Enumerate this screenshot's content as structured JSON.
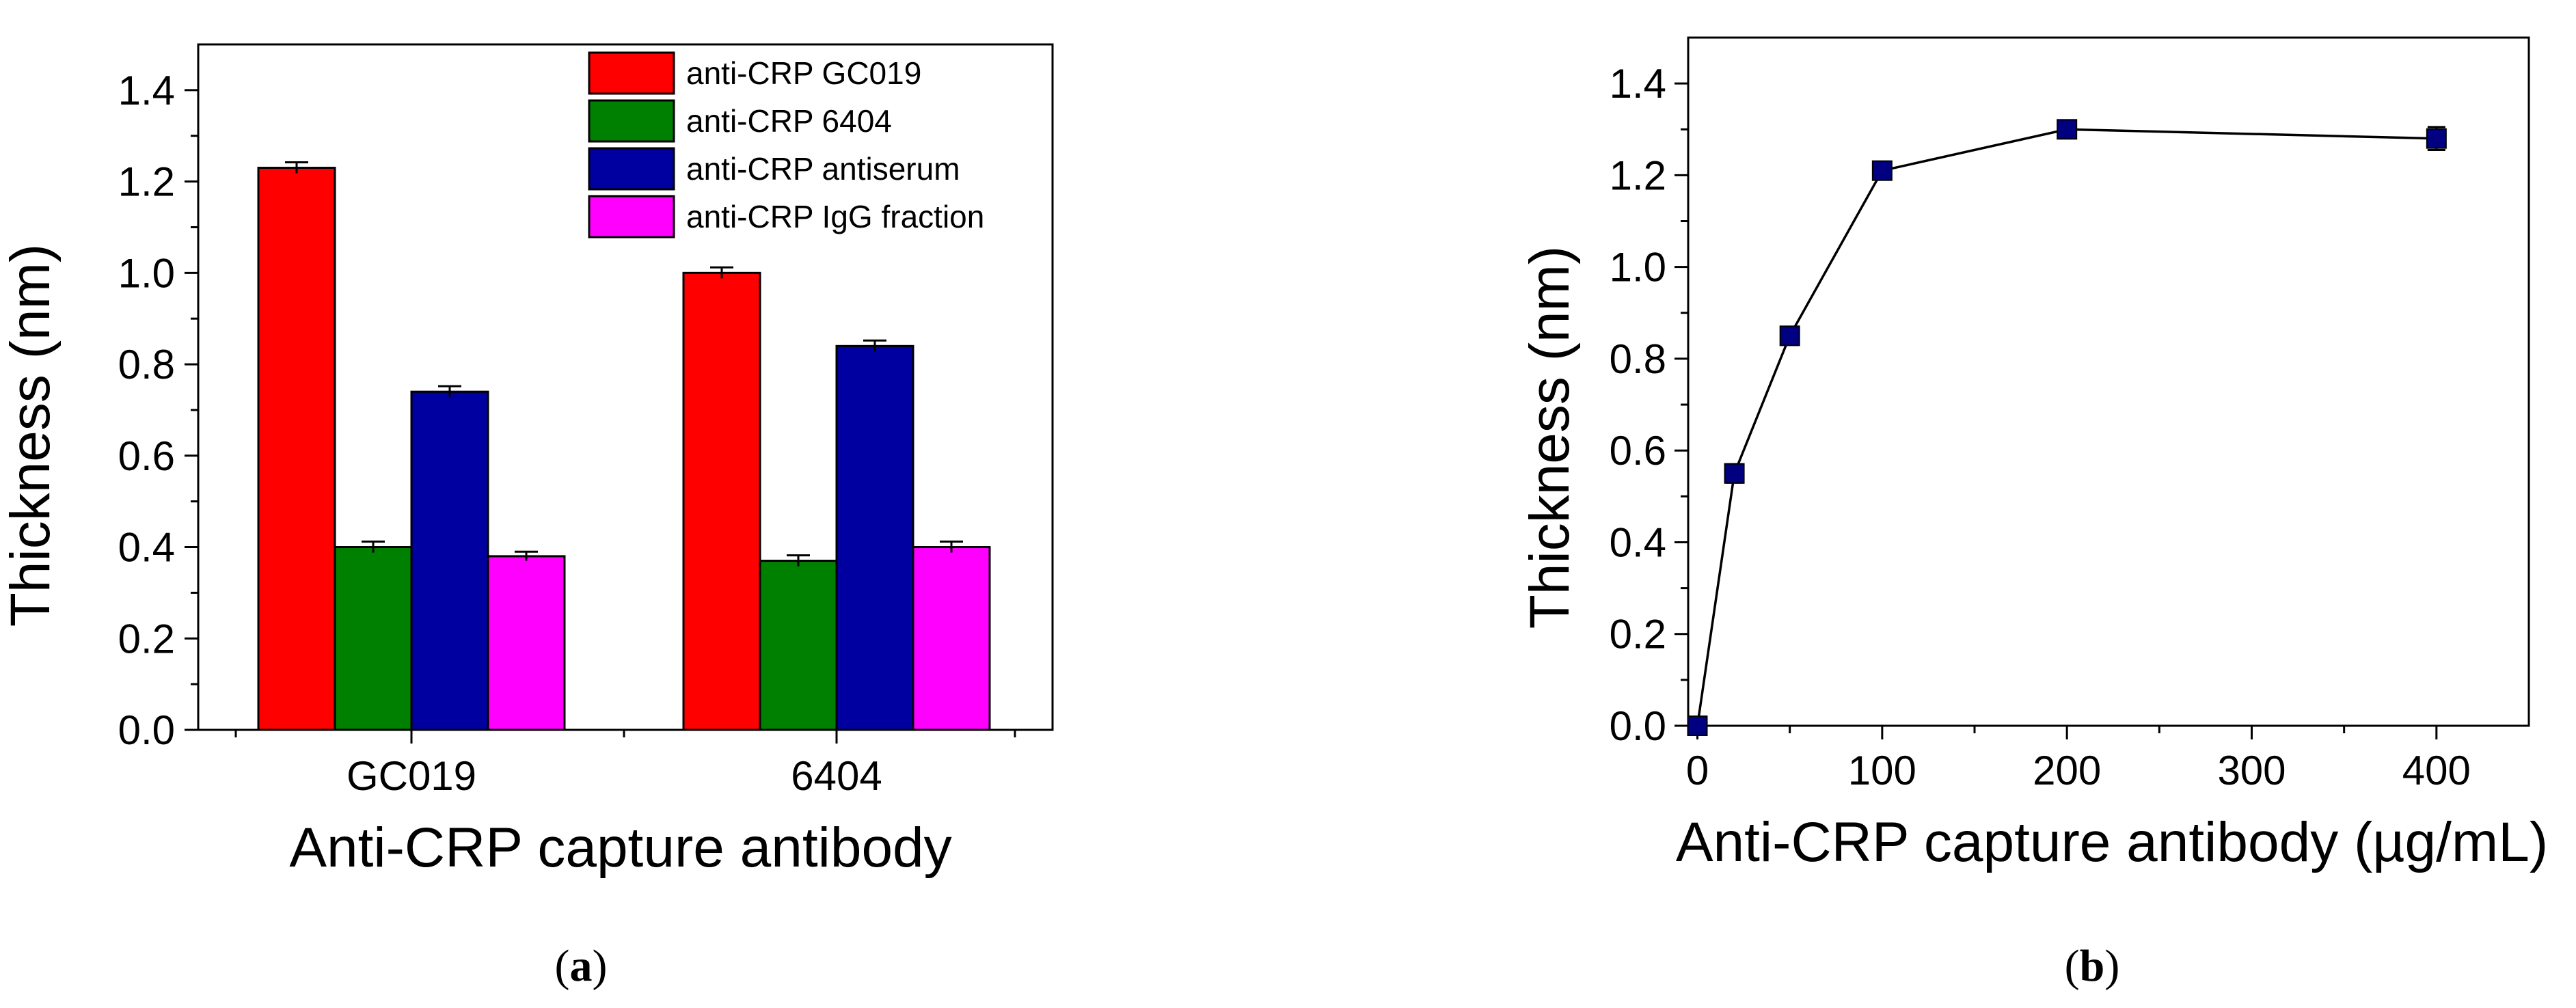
{
  "chart_data": [
    {
      "type": "bar",
      "panel_label": "(a)",
      "panel_letter": "a",
      "xlabel": "Anti-CRP capture antibody",
      "ylabel": "Thickness (nm)",
      "categories": [
        "GC019",
        "6404"
      ],
      "ylim": [
        0,
        1.5
      ],
      "yticks": [
        "0.0",
        "0.2",
        "0.4",
        "0.6",
        "0.8",
        "1.0",
        "1.2",
        "1.4"
      ],
      "legend_position": "top-right",
      "series": [
        {
          "name": "anti-CRP GC019",
          "color": "#ff0000",
          "values": [
            1.23,
            1.0
          ],
          "errors": [
            0.012,
            0.012
          ]
        },
        {
          "name": "anti-CRP 6404",
          "color": "#008000",
          "values": [
            0.4,
            0.37
          ],
          "errors": [
            0.012,
            0.012
          ]
        },
        {
          "name": "anti-CRP antiserum",
          "color": "#0000a0",
          "values": [
            0.74,
            0.84
          ],
          "errors": [
            0.012,
            0.012
          ]
        },
        {
          "name": "anti-CRP IgG fraction",
          "color": "#ff00ff",
          "values": [
            0.38,
            0.4
          ],
          "errors": [
            0.01,
            0.012
          ]
        }
      ]
    },
    {
      "type": "line",
      "panel_label": "(b)",
      "panel_letter": "b",
      "xlabel": "Anti-CRP capture antibody (µg/mL)",
      "ylabel": "Thickness (nm)",
      "xlim": [
        -5,
        450
      ],
      "ylim": [
        0,
        1.5
      ],
      "xticks": [
        "0",
        "100",
        "200",
        "300",
        "400"
      ],
      "yticks": [
        "0.0",
        "0.2",
        "0.4",
        "0.6",
        "0.8",
        "1.0",
        "1.2",
        "1.4"
      ],
      "marker_color": "#000080",
      "x": [
        0,
        20,
        50,
        100,
        200,
        400
      ],
      "y": [
        0.0,
        0.55,
        0.85,
        1.21,
        1.3,
        1.28
      ],
      "errors": [
        0.01,
        0.02,
        0.02,
        0.015,
        0.015,
        0.025
      ]
    }
  ]
}
